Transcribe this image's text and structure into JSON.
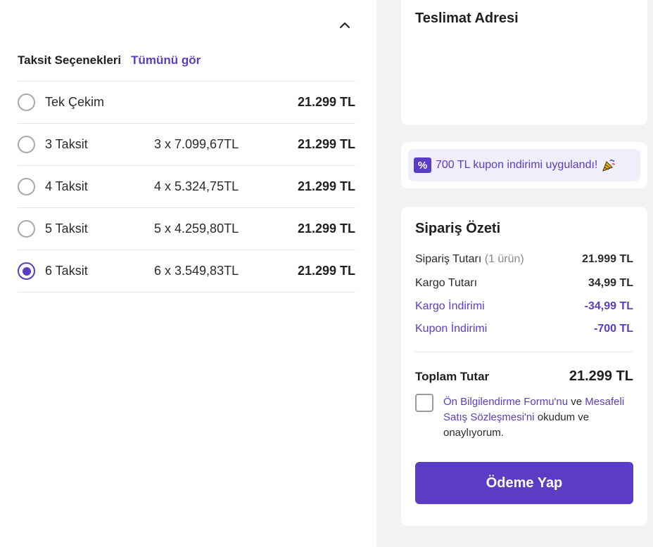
{
  "installments": {
    "title": "Taksit Seçenekleri",
    "see_all_label": "Tümünü gör",
    "options": [
      {
        "label": "Tek Çekim",
        "monthly": "",
        "total": "21.299 TL",
        "selected": false
      },
      {
        "label": "3 Taksit",
        "monthly": "3 x 7.099,67TL",
        "total": "21.299 TL",
        "selected": false
      },
      {
        "label": "4 Taksit",
        "monthly": "4 x 5.324,75TL",
        "total": "21.299 TL",
        "selected": false
      },
      {
        "label": "5 Taksit",
        "monthly": "5 x 4.259,80TL",
        "total": "21.299 TL",
        "selected": false
      },
      {
        "label": "6 Taksit",
        "monthly": "6 x 3.549,83TL",
        "total": "21.299 TL",
        "selected": true
      }
    ]
  },
  "delivery": {
    "title": "Teslimat Adresi"
  },
  "coupon": {
    "icon_text": "%",
    "message": "700 TL kupon indirimi uygulandı!"
  },
  "summary": {
    "title": "Sipariş Özeti",
    "order_amount_label": "Sipariş Tutarı",
    "order_item_count": "(1 ürün)",
    "order_amount_value": "21.999 TL",
    "shipping_label": "Kargo Tutarı",
    "shipping_value": "34,99 TL",
    "shipping_discount_label": "Kargo İndirimi",
    "shipping_discount_value": "-34,99 TL",
    "coupon_discount_label": "Kupon İndirimi",
    "coupon_discount_value": "-700 TL",
    "total_label": "Toplam Tutar",
    "total_value": "21.299 TL"
  },
  "agreement": {
    "link1": "Ön Bilgilendirme Formu'nu",
    "text1": " ve ",
    "link2": "Mesafeli Satış Sözleşmesi'ni",
    "text2": " okudum ve onaylıyorum."
  },
  "pay_button_label": "Ödeme Yap",
  "colors": {
    "accent": "#5b3cc4",
    "background": "#f3f3f3"
  }
}
